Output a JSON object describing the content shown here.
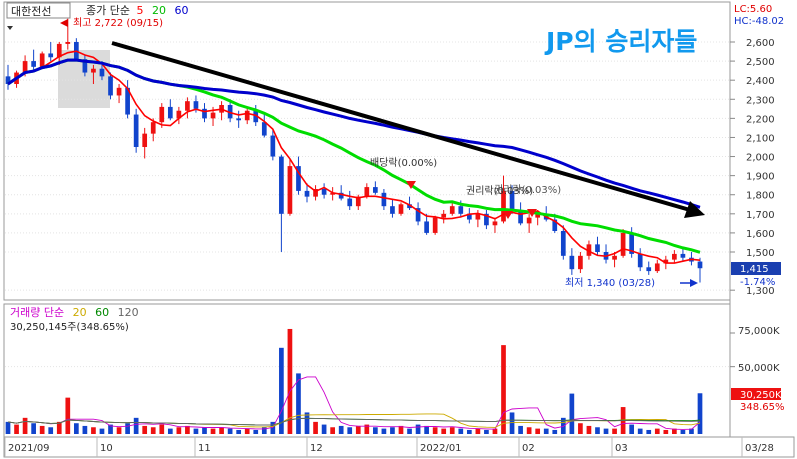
{
  "header": {
    "stock_name": "대한전선",
    "price_legend_label": "종가 단순",
    "ma_periods": [
      "5",
      "20",
      "60"
    ],
    "volume_legend_label": "거래량 단순",
    "volume_ma_periods": [
      "5",
      "20",
      "60",
      "120"
    ],
    "volume_current": "30,250,145주(348.65%)",
    "brand": "JP의 승리자들"
  },
  "colors": {
    "ma5": "#ff0000",
    "ma20": "#00dd00",
    "ma60": "#0000cc",
    "up": "#ee1111",
    "down": "#1144cc",
    "trend_line": "#000000",
    "brand": "#1199ee",
    "vol_ma5": "#cc00cc",
    "vol_ma20": "#ccaa00",
    "vol_ma60": "#008800",
    "vol_ma120": "#666666"
  },
  "annotations": {
    "high": "최고 2,722 (09/15)",
    "low": "최저 1,340 (03/28)",
    "dividend": "배당락(0.00%)",
    "rights": "권리락(0.03%)",
    "rights_overlap": "권리락(0.03%)"
  },
  "price_axis": {
    "top_labels": [
      "LC:5.60",
      "HC:-48.02"
    ],
    "ticks": [
      "2,600",
      "2,500",
      "2,400",
      "2,300",
      "2,200",
      "2,100",
      "2,000",
      "1,900",
      "1,800",
      "1,700",
      "1,600",
      "1,500",
      "1,300"
    ],
    "current_price": "1,415",
    "current_change": "-1.74%"
  },
  "volume_axis": {
    "ticks": [
      "75,000K",
      "50,000K"
    ],
    "current_volume": "30,250K",
    "current_ratio": "348.65%"
  },
  "x_axis": {
    "labels": [
      "2021/09",
      "10",
      "11",
      "12",
      "2022/01",
      "02",
      "03",
      "03/28"
    ]
  },
  "chart_data": {
    "type": "candlestick",
    "period": "2021/09 – 2022/03/28",
    "ylim": [
      1300,
      2700
    ],
    "ohlc": [
      [
        2420,
        2480,
        2350,
        2380
      ],
      [
        2380,
        2450,
        2360,
        2440
      ],
      [
        2440,
        2530,
        2420,
        2500
      ],
      [
        2500,
        2560,
        2450,
        2470
      ],
      [
        2470,
        2550,
        2460,
        2540
      ],
      [
        2540,
        2600,
        2500,
        2520
      ],
      [
        2520,
        2600,
        2480,
        2590
      ],
      [
        2590,
        2722,
        2560,
        2600
      ],
      [
        2600,
        2620,
        2500,
        2510
      ],
      [
        2510,
        2530,
        2420,
        2440
      ],
      [
        2440,
        2480,
        2380,
        2460
      ],
      [
        2460,
        2500,
        2400,
        2420
      ],
      [
        2420,
        2440,
        2300,
        2320
      ],
      [
        2320,
        2380,
        2280,
        2360
      ],
      [
        2360,
        2400,
        2200,
        2220
      ],
      [
        2220,
        2250,
        2020,
        2050
      ],
      [
        2050,
        2150,
        1990,
        2120
      ],
      [
        2120,
        2200,
        2080,
        2180
      ],
      [
        2180,
        2280,
        2150,
        2260
      ],
      [
        2260,
        2300,
        2190,
        2200
      ],
      [
        2200,
        2260,
        2170,
        2240
      ],
      [
        2240,
        2310,
        2200,
        2290
      ],
      [
        2290,
        2320,
        2230,
        2250
      ],
      [
        2250,
        2280,
        2180,
        2200
      ],
      [
        2200,
        2260,
        2160,
        2230
      ],
      [
        2230,
        2290,
        2190,
        2270
      ],
      [
        2270,
        2300,
        2180,
        2200
      ],
      [
        2200,
        2240,
        2150,
        2190
      ],
      [
        2190,
        2250,
        2170,
        2240
      ],
      [
        2240,
        2270,
        2160,
        2180
      ],
      [
        2180,
        2230,
        2100,
        2110
      ],
      [
        2110,
        2140,
        1980,
        2000
      ],
      [
        2000,
        2010,
        1500,
        1700
      ],
      [
        1700,
        1990,
        1690,
        1950
      ],
      [
        1950,
        2000,
        1800,
        1820
      ],
      [
        1820,
        1860,
        1760,
        1790
      ],
      [
        1790,
        1850,
        1770,
        1830
      ],
      [
        1830,
        1860,
        1780,
        1800
      ],
      [
        1800,
        1840,
        1770,
        1810
      ],
      [
        1810,
        1850,
        1770,
        1780
      ],
      [
        1780,
        1820,
        1720,
        1740
      ],
      [
        1740,
        1800,
        1720,
        1790
      ],
      [
        1790,
        1860,
        1780,
        1840
      ],
      [
        1840,
        1870,
        1800,
        1810
      ],
      [
        1810,
        1830,
        1720,
        1740
      ],
      [
        1740,
        1780,
        1680,
        1700
      ],
      [
        1700,
        1760,
        1690,
        1750
      ],
      [
        1750,
        1790,
        1720,
        1730
      ],
      [
        1730,
        1760,
        1640,
        1660
      ],
      [
        1660,
        1700,
        1590,
        1600
      ],
      [
        1600,
        1690,
        1590,
        1680
      ],
      [
        1680,
        1720,
        1650,
        1700
      ],
      [
        1700,
        1760,
        1690,
        1740
      ],
      [
        1740,
        1770,
        1680,
        1700
      ],
      [
        1700,
        1730,
        1650,
        1670
      ],
      [
        1670,
        1720,
        1630,
        1700
      ],
      [
        1700,
        1720,
        1620,
        1640
      ],
      [
        1640,
        1680,
        1600,
        1660
      ],
      [
        1660,
        1900,
        1650,
        1820
      ],
      [
        1820,
        1850,
        1700,
        1720
      ],
      [
        1720,
        1760,
        1640,
        1650
      ],
      [
        1650,
        1700,
        1600,
        1680
      ],
      [
        1680,
        1720,
        1640,
        1700
      ],
      [
        1700,
        1740,
        1660,
        1670
      ],
      [
        1670,
        1700,
        1600,
        1610
      ],
      [
        1610,
        1640,
        1460,
        1480
      ],
      [
        1480,
        1520,
        1380,
        1410
      ],
      [
        1410,
        1500,
        1390,
        1480
      ],
      [
        1480,
        1560,
        1460,
        1540
      ],
      [
        1540,
        1580,
        1480,
        1500
      ],
      [
        1500,
        1540,
        1440,
        1460
      ],
      [
        1460,
        1500,
        1420,
        1480
      ],
      [
        1480,
        1620,
        1470,
        1600
      ],
      [
        1600,
        1630,
        1470,
        1490
      ],
      [
        1490,
        1520,
        1400,
        1420
      ],
      [
        1420,
        1450,
        1380,
        1400
      ],
      [
        1400,
        1460,
        1390,
        1440
      ],
      [
        1440,
        1480,
        1410,
        1460
      ],
      [
        1460,
        1510,
        1440,
        1490
      ],
      [
        1490,
        1520,
        1450,
        1470
      ],
      [
        1470,
        1500,
        1430,
        1450
      ],
      [
        1450,
        1470,
        1340,
        1415
      ]
    ],
    "volume_k": [
      9000,
      7000,
      12000,
      8000,
      6000,
      5000,
      9000,
      27000,
      8000,
      6000,
      5000,
      4000,
      7000,
      5000,
      8000,
      12000,
      6000,
      5000,
      7000,
      4000,
      5000,
      6000,
      4000,
      5000,
      4000,
      5000,
      4000,
      3000,
      4000,
      3000,
      5000,
      9000,
      64000,
      78000,
      45000,
      16000,
      9000,
      7000,
      5000,
      6000,
      5000,
      6000,
      7000,
      5000,
      4000,
      5000,
      6000,
      4000,
      7000,
      6000,
      5000,
      4000,
      5000,
      4000,
      3000,
      4000,
      3000,
      4000,
      66000,
      16000,
      6000,
      5000,
      4000,
      4000,
      3000,
      12000,
      30000,
      8000,
      6000,
      5000,
      4000,
      4000,
      20000,
      7000,
      4000,
      3000,
      4000,
      3000,
      4000,
      3000,
      4000,
      30250
    ]
  }
}
